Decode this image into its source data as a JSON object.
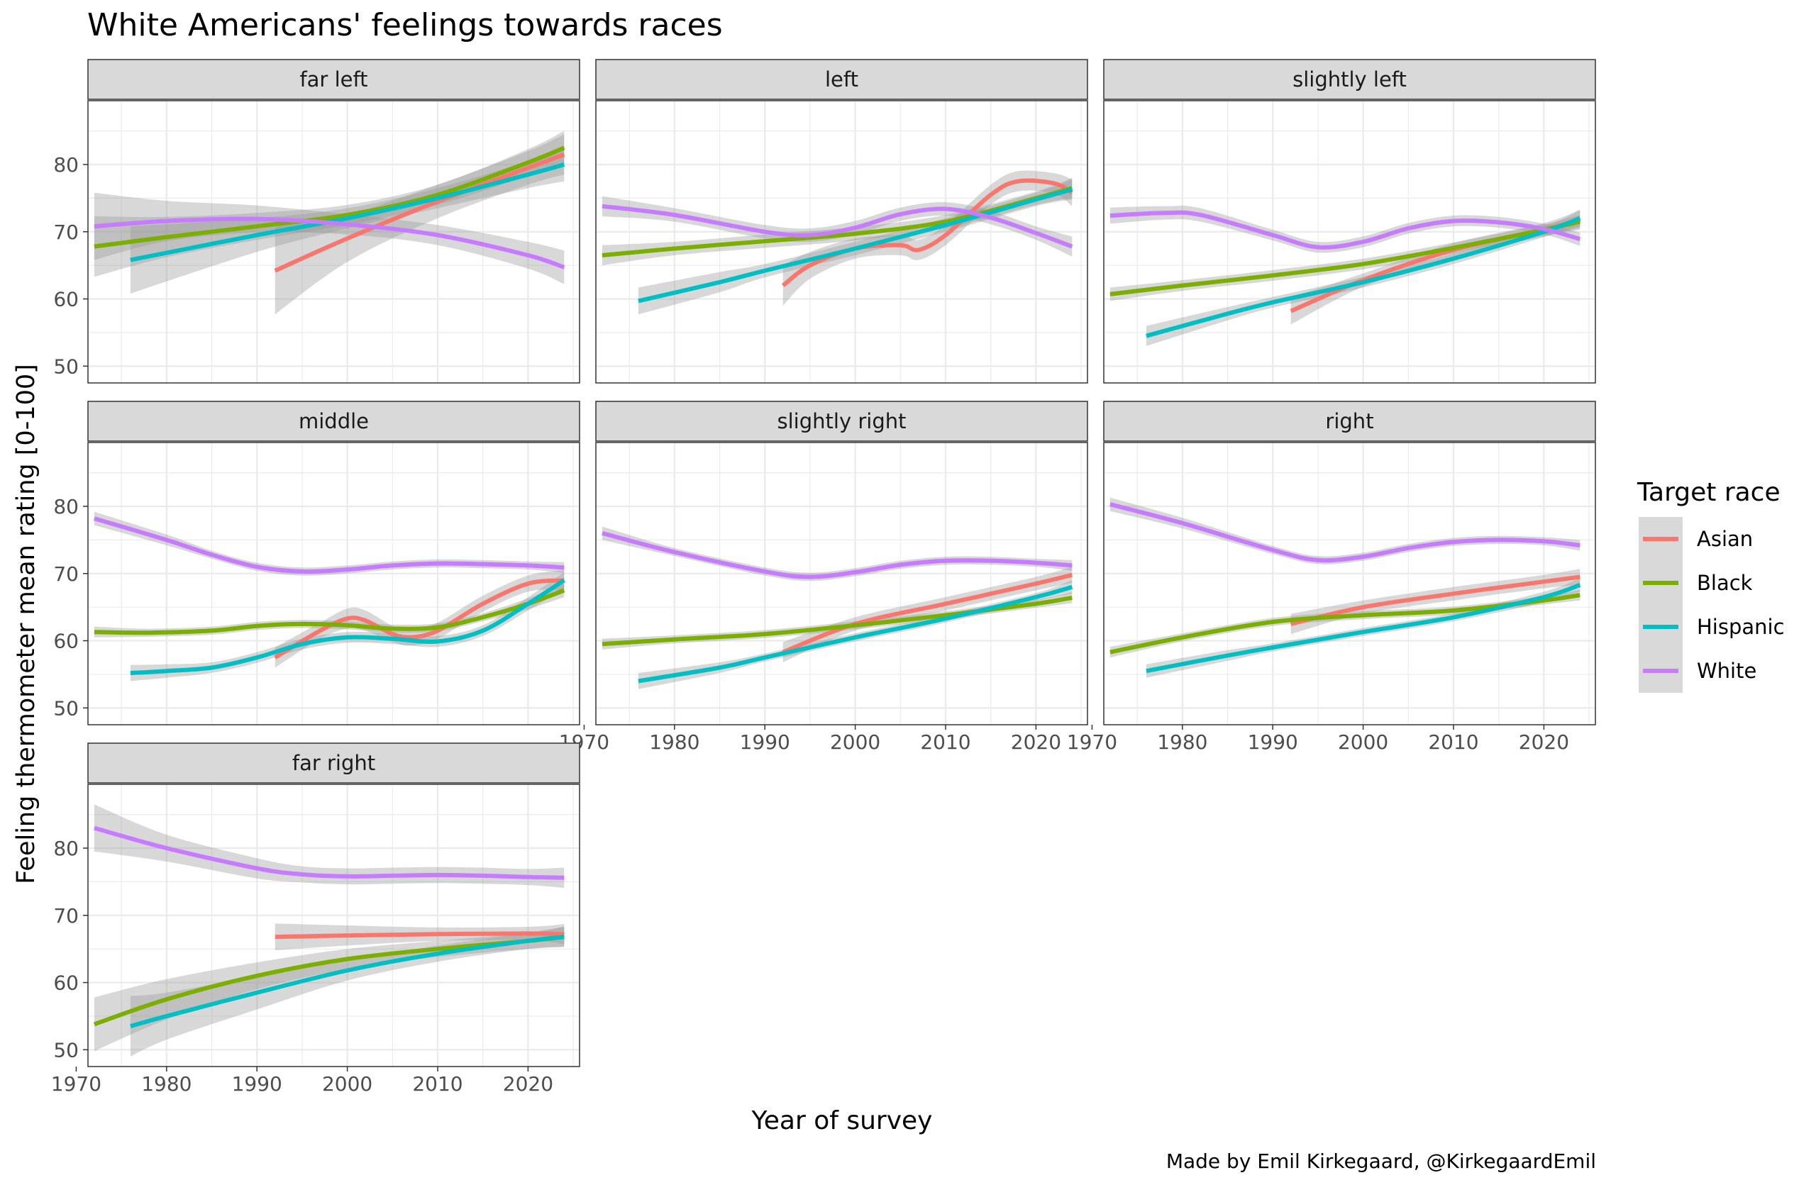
{
  "chart_data": {
    "type": "line",
    "title": "White Americans' feelings towards races",
    "xlabel": "Year of survey",
    "ylabel": "Feeling thermometer mean rating [0-100]",
    "caption": "Made by Emil Kirkegaard, @KirkegaardEmil",
    "xlim": [
      1971.3,
      2025.7
    ],
    "ylim": [
      47.5,
      89.5
    ],
    "xticks": [
      1970,
      1980,
      1990,
      2000,
      2010,
      2020
    ],
    "yticks": [
      50,
      60,
      70,
      80
    ],
    "grid": true,
    "legend": {
      "title": "Target race",
      "position": "right",
      "entries": [
        {
          "name": "Asian",
          "color": "#F8766D"
        },
        {
          "name": "Black",
          "color": "#7CAE00"
        },
        {
          "name": "Hispanic",
          "color": "#00BFC4"
        },
        {
          "name": "White",
          "color": "#C77CFF"
        }
      ]
    },
    "panels": [
      {
        "label": "far left",
        "series": [
          {
            "name": "Asian",
            "x": [
              1992,
              2000,
              2010,
              2020,
              2024
            ],
            "y": [
              64.2,
              69.0,
              74.5,
              79.5,
              81.5
            ],
            "band": [
              6.5,
              3.5,
              2.5,
              2.5,
              3.0
            ]
          },
          {
            "name": "Black",
            "x": [
              1972,
              1980,
              1990,
              2000,
              2010,
              2020,
              2024
            ],
            "y": [
              67.8,
              69.2,
              70.8,
              72.5,
              75.5,
              80.3,
              82.5
            ],
            "band": [
              4.5,
              3.0,
              2.0,
              1.5,
              1.5,
              2.0,
              2.5
            ]
          },
          {
            "name": "Hispanic",
            "x": [
              1976,
              1990,
              2000,
              2010,
              2020,
              2024
            ],
            "y": [
              65.8,
              69.5,
              72.0,
              75.0,
              78.5,
              80.0
            ],
            "band": [
              5.0,
              2.5,
              1.5,
              1.5,
              2.0,
              2.5
            ]
          },
          {
            "name": "White",
            "x": [
              1972,
              1980,
              1990,
              2000,
              2010,
              2020,
              2024
            ],
            "y": [
              70.8,
              71.6,
              71.9,
              71.1,
              69.5,
              66.5,
              64.7
            ],
            "band": [
              5.0,
              3.0,
              2.0,
              1.5,
              1.5,
              2.0,
              2.5
            ]
          }
        ]
      },
      {
        "label": "left",
        "series": [
          {
            "name": "Asian",
            "x": [
              1992,
              1995,
              2000,
              2005,
              2007,
              2010,
              2015,
              2018,
              2022,
              2024
            ],
            "y": [
              62.0,
              65.0,
              67.5,
              68.0,
              67.3,
              69.5,
              75.5,
              77.5,
              77.2,
              75.8
            ],
            "band": [
              3.0,
              2.0,
              1.5,
              1.5,
              1.5,
              1.5,
              1.5,
              1.5,
              1.5,
              2.0
            ]
          },
          {
            "name": "Black",
            "x": [
              1972,
              1980,
              1990,
              2000,
              2010,
              2020,
              2024
            ],
            "y": [
              66.5,
              67.5,
              68.6,
              69.7,
              71.5,
              75.0,
              76.5
            ],
            "band": [
              1.5,
              1.0,
              1.0,
              1.0,
              1.0,
              1.0,
              1.5
            ]
          },
          {
            "name": "Hispanic",
            "x": [
              1976,
              1985,
              1990,
              2000,
              2010,
              2020,
              2024
            ],
            "y": [
              59.7,
              62.5,
              64.2,
              67.5,
              71.0,
              74.8,
              76.3
            ],
            "band": [
              2.0,
              1.5,
              1.0,
              1.0,
              1.0,
              1.0,
              1.5
            ]
          },
          {
            "name": "White",
            "x": [
              1972,
              1980,
              1990,
              1995,
              2000,
              2005,
              2010,
              2015,
              2020,
              2024
            ],
            "y": [
              73.8,
              72.5,
              70.0,
              69.5,
              70.6,
              72.6,
              73.4,
              72.1,
              69.8,
              67.8
            ],
            "band": [
              1.5,
              1.0,
              1.0,
              1.0,
              1.0,
              1.0,
              1.0,
              1.0,
              1.0,
              1.5
            ]
          }
        ]
      },
      {
        "label": "slightly left",
        "series": [
          {
            "name": "Asian",
            "x": [
              1992,
              2000,
              2010,
              2020,
              2024
            ],
            "y": [
              58.2,
              62.8,
              67.3,
              70.3,
              71.8
            ],
            "band": [
              2.0,
              1.0,
              1.0,
              1.0,
              1.5
            ]
          },
          {
            "name": "Black",
            "x": [
              1972,
              1980,
              1990,
              2000,
              2010,
              2020,
              2024
            ],
            "y": [
              60.7,
              62.0,
              63.5,
              65.2,
              67.6,
              70.3,
              71.5
            ],
            "band": [
              1.0,
              0.8,
              0.8,
              0.8,
              0.8,
              0.8,
              1.0
            ]
          },
          {
            "name": "Hispanic",
            "x": [
              1976,
              1985,
              1990,
              2000,
              2010,
              2020,
              2024
            ],
            "y": [
              54.5,
              57.8,
              59.5,
              62.5,
              66.0,
              70.0,
              72.0
            ],
            "band": [
              1.5,
              1.0,
              0.8,
              0.8,
              0.8,
              0.8,
              1.2
            ]
          },
          {
            "name": "White",
            "x": [
              1972,
              1978,
              1982,
              1990,
              1995,
              2000,
              2005,
              2010,
              2015,
              2020,
              2024
            ],
            "y": [
              72.4,
              72.8,
              72.5,
              69.5,
              67.7,
              68.5,
              70.5,
              71.6,
              71.4,
              70.4,
              68.9
            ],
            "band": [
              1.2,
              1.0,
              1.0,
              0.8,
              0.8,
              0.8,
              0.8,
              0.8,
              0.8,
              0.8,
              1.0
            ]
          }
        ]
      },
      {
        "label": "middle",
        "series": [
          {
            "name": "Asian",
            "x": [
              1992,
              1997,
              2000,
              2002,
              2005,
              2007,
              2010,
              2015,
              2020,
              2024
            ],
            "y": [
              57.5,
              61.5,
              63.3,
              63.0,
              61.0,
              60.5,
              61.5,
              65.5,
              68.5,
              69.0
            ],
            "band": [
              1.5,
              1.2,
              1.5,
              1.5,
              1.2,
              1.2,
              1.2,
              1.2,
              1.2,
              1.5
            ]
          },
          {
            "name": "Black",
            "x": [
              1972,
              1978,
              1985,
              1990,
              1995,
              2000,
              2005,
              2010,
              2015,
              2020,
              2024
            ],
            "y": [
              61.3,
              61.2,
              61.5,
              62.2,
              62.5,
              62.3,
              61.8,
              62.0,
              63.5,
              65.5,
              67.5
            ],
            "band": [
              0.8,
              0.6,
              0.6,
              0.6,
              0.6,
              0.6,
              0.6,
              0.6,
              0.6,
              0.8,
              1.0
            ]
          },
          {
            "name": "Hispanic",
            "x": [
              1976,
              1980,
              1985,
              1990,
              1995,
              2000,
              2005,
              2010,
              2015,
              2020,
              2024
            ],
            "y": [
              55.2,
              55.5,
              56.0,
              57.5,
              59.5,
              60.5,
              60.3,
              59.9,
              61.5,
              65.5,
              69.0
            ],
            "band": [
              1.2,
              1.0,
              0.8,
              0.8,
              0.8,
              0.8,
              0.8,
              0.8,
              0.8,
              1.0,
              1.2
            ]
          },
          {
            "name": "White",
            "x": [
              1972,
              1980,
              1985,
              1990,
              1995,
              2000,
              2005,
              2010,
              2015,
              2020,
              2024
            ],
            "y": [
              78.2,
              75.0,
              72.8,
              71.0,
              70.3,
              70.6,
              71.2,
              71.5,
              71.4,
              71.2,
              70.9
            ],
            "band": [
              1.0,
              0.8,
              0.6,
              0.6,
              0.6,
              0.6,
              0.6,
              0.6,
              0.6,
              0.6,
              0.8
            ]
          }
        ]
      },
      {
        "label": "slightly right",
        "series": [
          {
            "name": "Asian",
            "x": [
              1992,
              2000,
              2010,
              2020,
              2024
            ],
            "y": [
              58.3,
              62.5,
              65.5,
              68.5,
              69.8
            ],
            "band": [
              1.5,
              1.0,
              1.0,
              1.0,
              1.2
            ]
          },
          {
            "name": "Black",
            "x": [
              1972,
              1980,
              1990,
              2000,
              2010,
              2020,
              2024
            ],
            "y": [
              59.5,
              60.2,
              61.0,
              62.3,
              63.8,
              65.5,
              66.4
            ],
            "band": [
              0.8,
              0.6,
              0.6,
              0.6,
              0.6,
              0.6,
              0.8
            ]
          },
          {
            "name": "Hispanic",
            "x": [
              1976,
              1985,
              1990,
              2000,
              2010,
              2020,
              2024
            ],
            "y": [
              54.0,
              56.0,
              57.5,
              60.5,
              63.3,
              66.5,
              68.0
            ],
            "band": [
              1.2,
              0.8,
              0.6,
              0.6,
              0.6,
              0.6,
              1.0
            ]
          },
          {
            "name": "White",
            "x": [
              1972,
              1980,
              1990,
              1995,
              2000,
              2005,
              2010,
              2015,
              2020,
              2024
            ],
            "y": [
              76.0,
              73.2,
              70.3,
              69.5,
              70.2,
              71.3,
              71.9,
              71.9,
              71.6,
              71.2
            ],
            "band": [
              1.0,
              0.6,
              0.6,
              0.6,
              0.6,
              0.6,
              0.6,
              0.6,
              0.6,
              0.8
            ]
          }
        ]
      },
      {
        "label": "right",
        "series": [
          {
            "name": "Asian",
            "x": [
              1992,
              2000,
              2010,
              2020,
              2024
            ],
            "y": [
              62.5,
              65.0,
              67.0,
              68.8,
              69.5
            ],
            "band": [
              1.5,
              1.0,
              1.0,
              1.0,
              1.2
            ]
          },
          {
            "name": "Black",
            "x": [
              1972,
              1980,
              1990,
              2000,
              2010,
              2020,
              2024
            ],
            "y": [
              58.3,
              60.5,
              62.8,
              63.8,
              64.5,
              66.0,
              66.8
            ],
            "band": [
              0.8,
              0.6,
              0.6,
              0.6,
              0.6,
              0.6,
              0.8
            ]
          },
          {
            "name": "Hispanic",
            "x": [
              1976,
              1985,
              1990,
              2000,
              2010,
              2020,
              2024
            ],
            "y": [
              55.5,
              57.8,
              59.0,
              61.3,
              63.5,
              66.5,
              68.3
            ],
            "band": [
              1.0,
              0.8,
              0.6,
              0.6,
              0.6,
              0.8,
              1.0
            ]
          },
          {
            "name": "White",
            "x": [
              1972,
              1980,
              1990,
              1995,
              2000,
              2005,
              2010,
              2015,
              2020,
              2024
            ],
            "y": [
              80.3,
              77.5,
              73.5,
              72.0,
              72.5,
              73.8,
              74.7,
              75.0,
              74.8,
              74.2
            ],
            "band": [
              1.0,
              0.8,
              0.6,
              0.6,
              0.6,
              0.6,
              0.6,
              0.6,
              0.6,
              0.8
            ]
          }
        ]
      },
      {
        "label": "far right",
        "series": [
          {
            "name": "Asian",
            "x": [
              1992,
              2000,
              2010,
              2020,
              2024
            ],
            "y": [
              66.8,
              67.0,
              67.2,
              67.3,
              67.2
            ],
            "band": [
              2.0,
              1.5,
              1.0,
              1.0,
              1.5
            ]
          },
          {
            "name": "Black",
            "x": [
              1972,
              1980,
              1990,
              2000,
              2010,
              2020,
              2024
            ],
            "y": [
              53.8,
              57.5,
              61.0,
              63.5,
              65.0,
              66.2,
              66.8
            ],
            "band": [
              4.0,
              3.0,
              2.0,
              1.5,
              1.2,
              1.2,
              1.5
            ]
          },
          {
            "name": "Hispanic",
            "x": [
              1976,
              1980,
              1990,
              2000,
              2010,
              2020,
              2024
            ],
            "y": [
              53.5,
              55.0,
              58.5,
              61.8,
              64.3,
              66.2,
              66.8
            ],
            "band": [
              4.5,
              3.5,
              2.5,
              1.5,
              1.2,
              1.2,
              1.5
            ]
          },
          {
            "name": "White",
            "x": [
              1972,
              1980,
              1990,
              1995,
              2000,
              2005,
              2010,
              2015,
              2020,
              2024
            ],
            "y": [
              83.0,
              80.0,
              77.0,
              76.1,
              75.8,
              75.9,
              76.0,
              75.9,
              75.7,
              75.6
            ],
            "band": [
              3.5,
              2.0,
              1.5,
              1.2,
              1.2,
              1.2,
              1.2,
              1.2,
              1.2,
              1.5
            ]
          }
        ]
      }
    ]
  }
}
